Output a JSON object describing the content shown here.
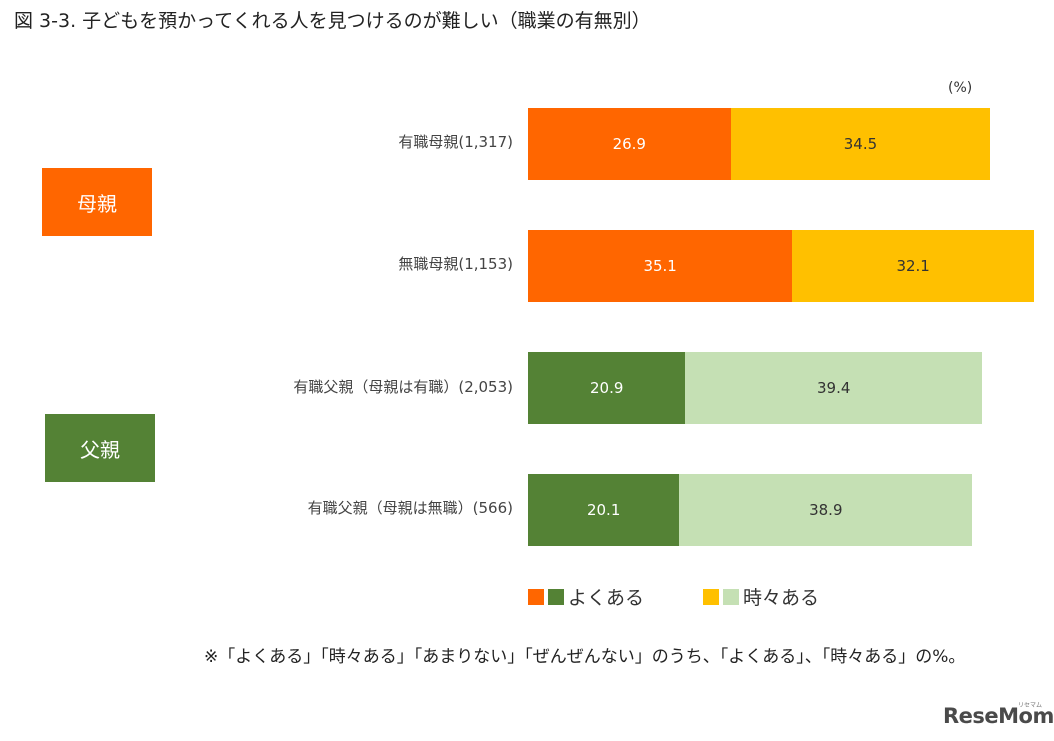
{
  "title": "図 3-3.  子どもを預かってくれる人を見つけるのが難しい（職業の有無別）",
  "unit": "(%)",
  "groups": [
    {
      "label": "母親",
      "color": "#FF6600"
    },
    {
      "label": "父親",
      "color": "#548235"
    }
  ],
  "chart_data": {
    "type": "bar",
    "orientation": "horizontal",
    "stacked": true,
    "title": "図 3-3.  子どもを預かってくれる人を見つけるのが難しい（職業の有無別）",
    "unit": "(%)",
    "xlim": [
      0,
      100
    ],
    "categories": [
      "有職母親(1,317)",
      "無職母親(1,153)",
      "有職父親（母親は有職）(2,053)",
      "有職父親（母親は無職）(566)"
    ],
    "series": [
      {
        "name": "よくある",
        "values": [
          26.9,
          35.1,
          20.9,
          20.1
        ]
      },
      {
        "name": "時々ある",
        "values": [
          34.5,
          32.1,
          39.4,
          38.9
        ]
      }
    ],
    "colors": {
      "mother_often": "#FF6600",
      "mother_sometimes": "#FFC000",
      "father_often": "#548235",
      "father_sometimes": "#C5E0B4"
    },
    "legend_position": "bottom",
    "grid": false
  },
  "legend": [
    {
      "label": "よくある",
      "colors": [
        "#FF6600",
        "#548235"
      ]
    },
    {
      "label": "時々ある",
      "colors": [
        "#FFC000",
        "#C5E0B4"
      ]
    }
  ],
  "note": "※「よくある」「時々ある」「あまりない」「ぜんぜんない」のうち、「よくある」、「時々ある」の%。",
  "logo": "ReseMom",
  "logo_small": "リセマム"
}
